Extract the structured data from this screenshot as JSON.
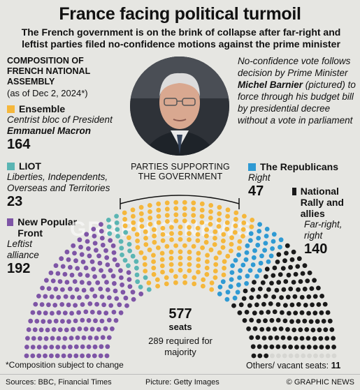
{
  "title": "France facing political turmoil",
  "subtitle": "The French government is on the brink of collapse after far-right and leftist parties filed no-confidence motions against the prime minister",
  "composition": {
    "heading": "COMPOSITION OF FRENCH NATIONAL ASSEMBLY",
    "as_of": "(as of Dec 2, 2024*)"
  },
  "groups": [
    {
      "key": "ensemble",
      "name": "Ensemble",
      "desc": "Centrist bloc of President",
      "desc_bold": "Emmanuel Macron",
      "seats": "164",
      "color": "#f5b73b"
    },
    {
      "key": "liot",
      "name": "LIOT",
      "desc": "Liberties, Independents, Overseas and Territories",
      "seats": "23",
      "color": "#5ab5b3"
    },
    {
      "key": "nfp",
      "name": "New Popular Front",
      "desc": "Leftist alliance",
      "seats": "192",
      "color": "#7e55a6"
    },
    {
      "key": "lr",
      "name": "The Republicans",
      "desc": "Right",
      "seats": "47",
      "color": "#2f9ad3"
    },
    {
      "key": "rn",
      "name": "National Rally and allies",
      "desc": "Far-right, right",
      "seats": "140",
      "color": "#1a1a1a"
    }
  ],
  "vote_text": {
    "p1": "No-confidence vote follows decision by Prime Minister",
    "name": "Michel Barnier",
    "p2": "(pictured) to force through his budget bill by presidential decree without a vote in parliament"
  },
  "support_label": "PARTIES SUPPORTING THE GOVERNMENT",
  "center": {
    "total": "577",
    "seats": "seats",
    "required": "289 required for majority"
  },
  "footnote": "*Composition subject to change",
  "others": {
    "label": "Others/ vacant seats:",
    "value": "11"
  },
  "footer": {
    "sources": "Sources: BBC, Financial Times",
    "picture": "Picture: Getty Images",
    "credit": "© GRAPHIC NEWS"
  },
  "watermark": "GRAPHIC NEWS",
  "hemicycle": {
    "order": [
      {
        "key": "nfp",
        "seats": 192,
        "color": "#7e55a6"
      },
      {
        "key": "liot",
        "seats": 23,
        "color": "#5ab5b3"
      },
      {
        "key": "ensemble",
        "seats": 164,
        "color": "#f5b73b"
      },
      {
        "key": "lr",
        "seats": 47,
        "color": "#2f9ad3"
      },
      {
        "key": "rn",
        "seats": 140,
        "color": "#1a1a1a"
      },
      {
        "key": "others",
        "seats": 11,
        "color": "#d6d6d2"
      }
    ]
  }
}
